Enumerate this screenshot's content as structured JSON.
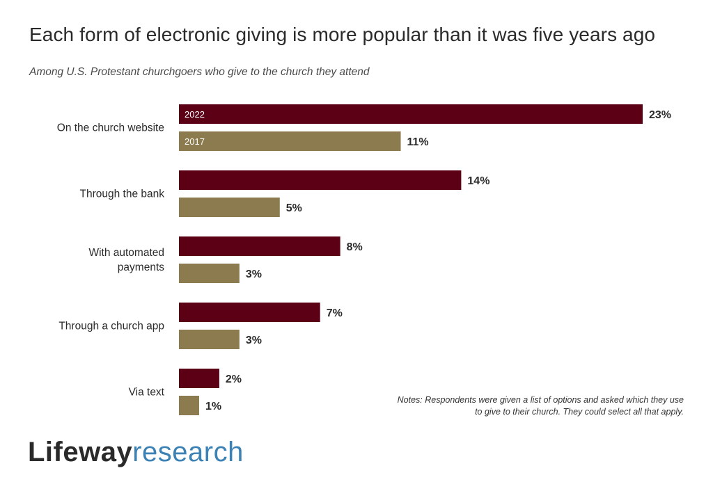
{
  "title": "Each form of electronic giving is more popular than it was five years ago",
  "subtitle": "Among U.S. Protestant churchgoers who give to the church they attend",
  "notes": "Notes: Respondents were given a list of options and asked which they use to give to their church. They could select all that apply.",
  "logo": {
    "part1": "Lifeway",
    "part2": "research"
  },
  "colors": {
    "series_2022": "#5c0015",
    "series_2017": "#8c7b4e"
  },
  "chart_data": {
    "type": "bar",
    "orientation": "horizontal",
    "categories": [
      [
        "On the church website"
      ],
      [
        "Through the bank"
      ],
      [
        "With automated",
        "payments"
      ],
      [
        "Through a church app"
      ],
      [
        "Via text"
      ]
    ],
    "series": [
      {
        "name": "2022",
        "values": [
          23,
          14,
          8,
          7,
          2
        ]
      },
      {
        "name": "2017",
        "values": [
          11,
          5,
          3,
          3,
          1
        ]
      }
    ],
    "value_suffix": "%",
    "xlim": [
      0,
      23
    ],
    "grid": false,
    "legend": "inline labels on first bars"
  }
}
